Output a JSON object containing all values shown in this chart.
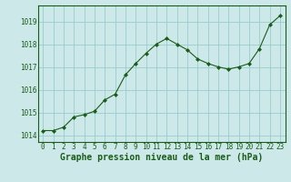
{
  "x": [
    0,
    1,
    2,
    3,
    4,
    5,
    6,
    7,
    8,
    9,
    10,
    11,
    12,
    13,
    14,
    15,
    16,
    17,
    18,
    19,
    20,
    21,
    22,
    23
  ],
  "y": [
    1014.2,
    1014.2,
    1014.35,
    1014.8,
    1014.9,
    1015.05,
    1015.55,
    1015.8,
    1016.65,
    1017.15,
    1017.6,
    1018.0,
    1018.25,
    1018.0,
    1017.75,
    1017.35,
    1017.15,
    1017.0,
    1016.9,
    1017.0,
    1017.15,
    1017.8,
    1018.85,
    1019.25
  ],
  "line_color": "#1a5c1a",
  "marker_color": "#1a5c1a",
  "bg_color": "#cce8e8",
  "grid_color": "#99cccc",
  "xlabel": "Graphe pression niveau de la mer (hPa)",
  "ylim": [
    1013.7,
    1019.7
  ],
  "xlim": [
    -0.5,
    23.5
  ],
  "yticks": [
    1014,
    1015,
    1016,
    1017,
    1018,
    1019
  ],
  "xticks": [
    0,
    1,
    2,
    3,
    4,
    5,
    6,
    7,
    8,
    9,
    10,
    11,
    12,
    13,
    14,
    15,
    16,
    17,
    18,
    19,
    20,
    21,
    22,
    23
  ],
  "tick_label_fontsize": 5.5,
  "xlabel_fontsize": 7.0
}
